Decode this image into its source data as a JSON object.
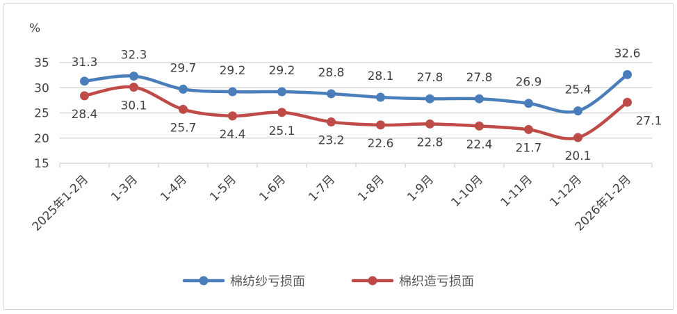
{
  "chart_data": {
    "type": "line",
    "ylabel": "%",
    "ylim": [
      15,
      35
    ],
    "yticks": [
      15,
      20,
      25,
      30,
      35
    ],
    "grid": true,
    "legend_position": "bottom",
    "categories": [
      "2025年1-2月",
      "1-3月",
      "1-4月",
      "1-5月",
      "1-6月",
      "1-7月",
      "1-8月",
      "1-9月",
      "1-10月",
      "1-11月",
      "1-12月",
      "2026年1-2月"
    ],
    "series": [
      {
        "name": "棉纺纱亏损面",
        "color": "#4a7ebb",
        "values": [
          31.3,
          32.3,
          29.7,
          29.2,
          29.2,
          28.8,
          28.1,
          27.8,
          27.8,
          26.9,
          25.4,
          32.6
        ]
      },
      {
        "name": "棉织造亏损面",
        "color": "#be4b48",
        "values": [
          28.4,
          30.1,
          25.7,
          24.4,
          25.1,
          23.2,
          22.6,
          22.8,
          22.4,
          21.7,
          20.1,
          27.1
        ]
      }
    ]
  }
}
